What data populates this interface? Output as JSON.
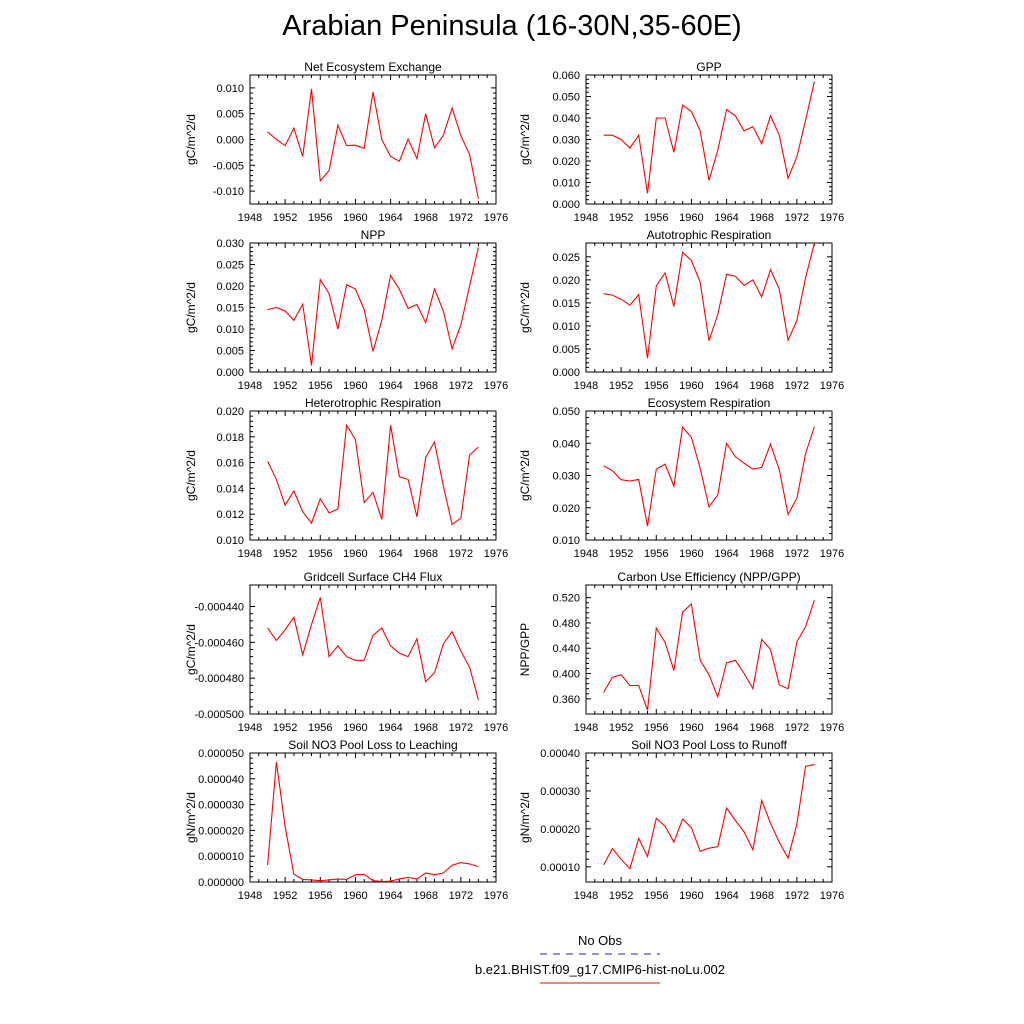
{
  "title": "Arabian Peninsula (16-30N,35-60E)",
  "x_ticks": [
    "1948",
    "1952",
    "1956",
    "1960",
    "1964",
    "1968",
    "1972",
    "1976"
  ],
  "legend": {
    "obs_label": "No Obs",
    "obs_color": "#2222cc",
    "case_label": "b.e21.BHIST.f09_g17.CMIP6-hist-noLu.002",
    "case_color": "#ff0000"
  },
  "chart_data": [
    {
      "type": "line",
      "title": "Net Ecosystem Exchange",
      "ylabel": "gC/m^2/d",
      "xlim": [
        1948,
        1976
      ],
      "ylim": [
        -0.0125,
        0.0125
      ],
      "yticks": [
        -0.01,
        -0.005,
        0.0,
        0.005,
        0.01
      ],
      "ytick_labels": [
        "-0.010",
        "-0.005",
        "0.000",
        "0.005",
        "0.010"
      ],
      "x": [
        1950,
        1951,
        1952,
        1953,
        1954,
        1955,
        1956,
        1957,
        1958,
        1959,
        1960,
        1961,
        1962,
        1963,
        1964,
        1965,
        1966,
        1967,
        1968,
        1969,
        1970,
        1971,
        1972,
        1973,
        1974
      ],
      "values": [
        0.0015,
        0.0,
        -0.0012,
        0.0022,
        -0.0033,
        0.0098,
        -0.008,
        -0.006,
        0.0028,
        -0.0012,
        -0.0011,
        -0.0017,
        0.0092,
        0.0,
        -0.0033,
        -0.0042,
        0.0001,
        -0.0037,
        0.005,
        -0.0016,
        0.0008,
        0.0061,
        0.0007,
        -0.0029,
        -0.0115
      ]
    },
    {
      "type": "line",
      "title": "GPP",
      "ylabel": "gC/m^2/d",
      "xlim": [
        1948,
        1976
      ],
      "ylim": [
        0.0,
        0.06
      ],
      "yticks": [
        0.0,
        0.01,
        0.02,
        0.03,
        0.04,
        0.05,
        0.06
      ],
      "ytick_labels": [
        "0.000",
        "0.010",
        "0.020",
        "0.030",
        "0.040",
        "0.050",
        "0.060"
      ],
      "x": [
        1950,
        1951,
        1952,
        1953,
        1954,
        1955,
        1956,
        1957,
        1958,
        1959,
        1960,
        1961,
        1962,
        1963,
        1964,
        1965,
        1966,
        1967,
        1968,
        1969,
        1970,
        1971,
        1972,
        1973,
        1974
      ],
      "values": [
        0.032,
        0.032,
        0.03,
        0.026,
        0.032,
        0.005,
        0.04,
        0.04,
        0.024,
        0.046,
        0.043,
        0.034,
        0.011,
        0.025,
        0.044,
        0.041,
        0.034,
        0.036,
        0.028,
        0.041,
        0.032,
        0.012,
        0.022,
        0.039,
        0.057
      ]
    },
    {
      "type": "line",
      "title": "NPP",
      "ylabel": "gC/m^2/d",
      "xlim": [
        1948,
        1976
      ],
      "ylim": [
        0.0,
        0.03
      ],
      "yticks": [
        0.0,
        0.005,
        0.01,
        0.015,
        0.02,
        0.025,
        0.03
      ],
      "ytick_labels": [
        "0.000",
        "0.005",
        "0.010",
        "0.015",
        "0.020",
        "0.025",
        "0.030"
      ],
      "x": [
        1950,
        1951,
        1952,
        1953,
        1954,
        1955,
        1956,
        1957,
        1958,
        1959,
        1960,
        1961,
        1962,
        1963,
        1964,
        1965,
        1966,
        1967,
        1968,
        1969,
        1970,
        1971,
        1972,
        1973,
        1974
      ],
      "values": [
        0.0145,
        0.015,
        0.0142,
        0.012,
        0.0158,
        0.0015,
        0.0215,
        0.0182,
        0.01,
        0.0203,
        0.0193,
        0.0145,
        0.0048,
        0.012,
        0.0225,
        0.0192,
        0.0148,
        0.0157,
        0.0115,
        0.0193,
        0.0142,
        0.0054,
        0.011,
        0.02,
        0.029
      ]
    },
    {
      "type": "line",
      "title": "Autotrophic Respiration",
      "ylabel": "gC/m^2/d",
      "xlim": [
        1948,
        1976
      ],
      "ylim": [
        0.0,
        0.028
      ],
      "yticks": [
        0.0,
        0.005,
        0.01,
        0.015,
        0.02,
        0.025
      ],
      "ytick_labels": [
        "0.000",
        "0.005",
        "0.010",
        "0.015",
        "0.020",
        "0.025"
      ],
      "x": [
        1950,
        1951,
        1952,
        1953,
        1954,
        1955,
        1956,
        1957,
        1958,
        1959,
        1960,
        1961,
        1962,
        1963,
        1964,
        1965,
        1966,
        1967,
        1968,
        1969,
        1970,
        1971,
        1972,
        1973,
        1974
      ],
      "values": [
        0.017,
        0.0167,
        0.0158,
        0.0145,
        0.0168,
        0.003,
        0.0187,
        0.0215,
        0.0142,
        0.026,
        0.0242,
        0.0195,
        0.0068,
        0.0125,
        0.0212,
        0.0208,
        0.0188,
        0.02,
        0.0163,
        0.0222,
        0.018,
        0.0069,
        0.0112,
        0.0205,
        0.028
      ]
    },
    {
      "type": "line",
      "title": "Heterotrophic Respiration",
      "ylabel": "gC/m^2/d",
      "xlim": [
        1948,
        1976
      ],
      "ylim": [
        0.01,
        0.02
      ],
      "yticks": [
        0.01,
        0.012,
        0.014,
        0.016,
        0.018,
        0.02
      ],
      "ytick_labels": [
        "0.010",
        "0.012",
        "0.014",
        "0.016",
        "0.018",
        "0.020"
      ],
      "x": [
        1950,
        1951,
        1952,
        1953,
        1954,
        1955,
        1956,
        1957,
        1958,
        1959,
        1960,
        1961,
        1962,
        1963,
        1964,
        1965,
        1966,
        1967,
        1968,
        1969,
        1970,
        1971,
        1972,
        1973,
        1974
      ],
      "values": [
        0.0161,
        0.0147,
        0.0127,
        0.0138,
        0.0122,
        0.0113,
        0.0132,
        0.0121,
        0.0124,
        0.0189,
        0.0178,
        0.0129,
        0.0137,
        0.0116,
        0.0189,
        0.0149,
        0.0147,
        0.0118,
        0.0164,
        0.0176,
        0.0142,
        0.0112,
        0.0117,
        0.0166,
        0.0172
      ]
    },
    {
      "type": "line",
      "title": "Ecosystem Respiration",
      "ylabel": "gC/m^2/d",
      "xlim": [
        1948,
        1976
      ],
      "ylim": [
        0.01,
        0.05
      ],
      "yticks": [
        0.01,
        0.02,
        0.03,
        0.04,
        0.05
      ],
      "ytick_labels": [
        "0.010",
        "0.020",
        "0.030",
        "0.040",
        "0.050"
      ],
      "x": [
        1950,
        1951,
        1952,
        1953,
        1954,
        1955,
        1956,
        1957,
        1958,
        1959,
        1960,
        1961,
        1962,
        1963,
        1964,
        1965,
        1966,
        1967,
        1968,
        1969,
        1970,
        1971,
        1972,
        1973,
        1974
      ],
      "values": [
        0.033,
        0.0315,
        0.0287,
        0.0283,
        0.0288,
        0.0143,
        0.032,
        0.0335,
        0.0267,
        0.045,
        0.0418,
        0.0322,
        0.0203,
        0.024,
        0.04,
        0.0358,
        0.0338,
        0.032,
        0.0325,
        0.0397,
        0.0318,
        0.0179,
        0.023,
        0.0368,
        0.0452
      ]
    },
    {
      "type": "line",
      "title": "Gridcell Surface CH4 Flux",
      "ylabel": "gC/m^2/d",
      "xlim": [
        1948,
        1976
      ],
      "ylim": [
        -0.0005,
        -0.000428
      ],
      "yticks": [
        -0.0005,
        -0.00048,
        -0.00046,
        -0.00044
      ],
      "ytick_labels": [
        "-0.000500",
        "-0.000480",
        "-0.000460",
        "-0.000440"
      ],
      "x": [
        1950,
        1951,
        1952,
        1953,
        1954,
        1955,
        1956,
        1957,
        1958,
        1959,
        1960,
        1961,
        1962,
        1963,
        1964,
        1965,
        1966,
        1967,
        1968,
        1969,
        1970,
        1971,
        1972,
        1973,
        1974
      ],
      "values": [
        -0.000452,
        -0.000459,
        -0.000453,
        -0.000446,
        -0.000467,
        -0.00045,
        -0.000435,
        -0.000468,
        -0.000462,
        -0.000468,
        -0.00047,
        -0.00047,
        -0.000456,
        -0.000452,
        -0.000462,
        -0.000466,
        -0.000468,
        -0.000458,
        -0.000482,
        -0.000477,
        -0.000461,
        -0.000454,
        -0.000465,
        -0.000474,
        -0.000492
      ]
    },
    {
      "type": "line",
      "title": "Carbon Use Efficiency (NPP/GPP)",
      "ylabel": "NPP/GPP",
      "xlim": [
        1948,
        1976
      ],
      "ylim": [
        0.336,
        0.54
      ],
      "yticks": [
        0.36,
        0.4,
        0.44,
        0.48,
        0.52
      ],
      "ytick_labels": [
        "0.360",
        "0.400",
        "0.440",
        "0.480",
        "0.520"
      ],
      "x": [
        1950,
        1951,
        1952,
        1953,
        1954,
        1955,
        1956,
        1957,
        1958,
        1959,
        1960,
        1961,
        1962,
        1963,
        1964,
        1965,
        1966,
        1967,
        1968,
        1969,
        1970,
        1971,
        1972,
        1973,
        1974
      ],
      "values": [
        0.37,
        0.394,
        0.398,
        0.381,
        0.381,
        0.342,
        0.472,
        0.449,
        0.405,
        0.497,
        0.51,
        0.421,
        0.398,
        0.363,
        0.417,
        0.421,
        0.4,
        0.376,
        0.454,
        0.438,
        0.382,
        0.376,
        0.45,
        0.474,
        0.516
      ]
    },
    {
      "type": "line",
      "title": "Soil NO3 Pool Loss to Leaching",
      "ylabel": "gN/m^2/d",
      "xlim": [
        1948,
        1976
      ],
      "ylim": [
        0.0,
        5e-05
      ],
      "yticks": [
        0.0,
        1e-05,
        2e-05,
        3e-05,
        4e-05,
        5e-05
      ],
      "ytick_labels": [
        "0.000000",
        "0.000010",
        "0.000020",
        "0.000030",
        "0.000040",
        "0.000050"
      ],
      "x": [
        1950,
        1951,
        1952,
        1953,
        1954,
        1955,
        1956,
        1957,
        1958,
        1959,
        1960,
        1961,
        1962,
        1963,
        1964,
        1965,
        1966,
        1967,
        1968,
        1969,
        1970,
        1971,
        1972,
        1973,
        1974
      ],
      "values": [
        6.5e-06,
        4.65e-05,
        2.15e-05,
        3e-06,
        1e-06,
        8e-07,
        5e-07,
        8e-07,
        1.2e-06,
        1e-06,
        2.8e-06,
        3e-06,
        5e-07,
        2e-07,
        3e-07,
        1.2e-06,
        1.8e-06,
        1.2e-06,
        3.5e-06,
        2.8e-06,
        3.5e-06,
        6.5e-06,
        7.5e-06,
        7e-06,
        6e-06
      ]
    },
    {
      "type": "line",
      "title": "Soil NO3 Pool Loss to Runoff",
      "ylabel": "gN/m^2/d",
      "xlim": [
        1948,
        1976
      ],
      "ylim": [
        6e-05,
        0.0004
      ],
      "yticks": [
        0.0001,
        0.0002,
        0.0003,
        0.0004
      ],
      "ytick_labels": [
        "0.00010",
        "0.00020",
        "0.00030",
        "0.00040"
      ],
      "x": [
        1950,
        1951,
        1952,
        1953,
        1954,
        1955,
        1956,
        1957,
        1958,
        1959,
        1960,
        1961,
        1962,
        1963,
        1964,
        1965,
        1966,
        1967,
        1968,
        1969,
        1970,
        1971,
        1972,
        1973,
        1974
      ],
      "values": [
        0.000105,
        0.000148,
        0.00012,
        9.5e-05,
        0.000175,
        0.000127,
        0.000228,
        0.000207,
        0.000165,
        0.000226,
        0.000203,
        0.000141,
        0.000149,
        0.000153,
        0.000255,
        0.000222,
        0.000192,
        0.000145,
        0.000275,
        0.000215,
        0.000165,
        0.000123,
        0.000213,
        0.000365,
        0.00037
      ]
    }
  ]
}
